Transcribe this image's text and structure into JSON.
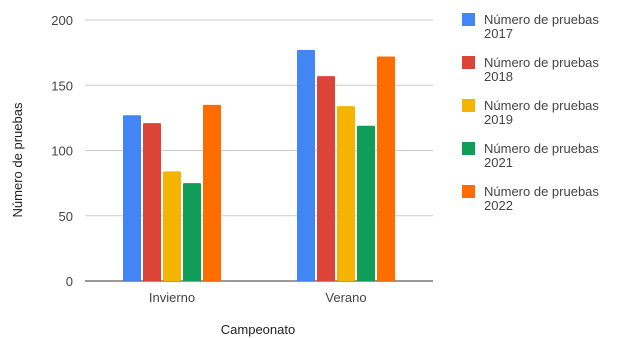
{
  "chart_data": {
    "type": "bar",
    "title": "",
    "xlabel": "Campeonato",
    "ylabel": "Número de pruebas",
    "ylim": [
      0,
      200
    ],
    "yticks": [
      0,
      50,
      100,
      150,
      200
    ],
    "categories": [
      "Invierno",
      "Verano"
    ],
    "grid": true,
    "legend_position": "right",
    "series": [
      {
        "name": "Número de pruebas 2017",
        "color": "#4285F4",
        "values": [
          127,
          177
        ]
      },
      {
        "name": "Número de pruebas 2018",
        "color": "#DB4437",
        "values": [
          121,
          157
        ]
      },
      {
        "name": "Número de pruebas 2019",
        "color": "#F4B400",
        "values": [
          84,
          134
        ]
      },
      {
        "name": "Número de pruebas 2021",
        "color": "#0F9D58",
        "values": [
          75,
          119
        ]
      },
      {
        "name": "Número de pruebas 2022",
        "color": "#FF6D01",
        "values": [
          135,
          172
        ]
      }
    ]
  }
}
